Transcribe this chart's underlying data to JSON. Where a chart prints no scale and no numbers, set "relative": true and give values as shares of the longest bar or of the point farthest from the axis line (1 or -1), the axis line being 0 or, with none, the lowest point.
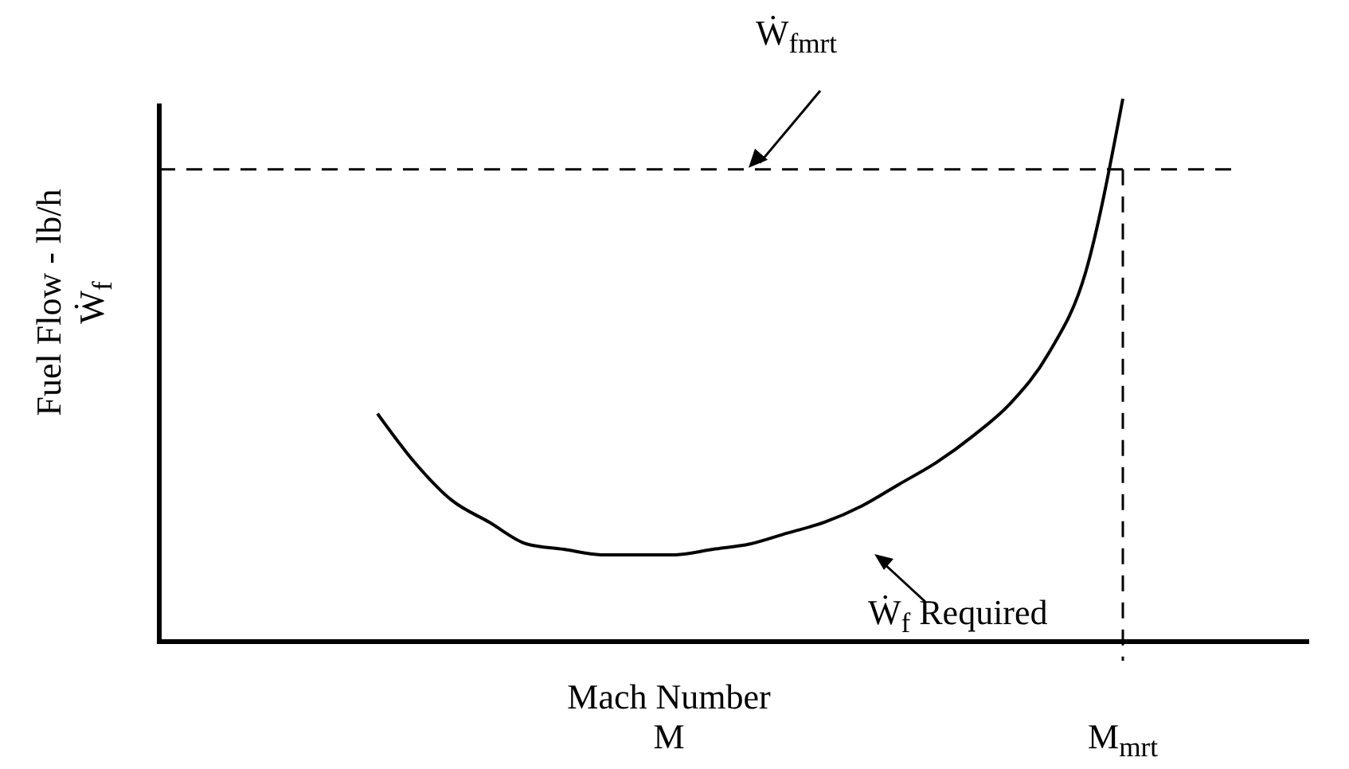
{
  "chart_data": {
    "type": "line",
    "relative": true,
    "xlabel": "Mach Number\nM",
    "ylabel": "Fuel Flow - lb/h\nẆ$_{f}$",
    "categories": [
      null,
      null,
      null,
      null,
      null,
      null,
      null,
      null,
      null,
      null,
      null,
      null,
      null,
      null,
      null,
      null,
      null,
      null,
      null,
      null,
      null,
      null,
      null,
      null,
      null,
      null,
      null,
      null,
      null,
      null
    ],
    "series": [
      {
        "color": "#000000",
        "values": [
          null,
          null,
          null,
          null,
          null,
          0.42,
          0.33,
          0.26,
          0.22,
          0.18,
          0.17,
          0.16,
          0.16,
          0.16,
          0.17,
          0.18,
          0.2,
          0.22,
          0.25,
          0.29,
          0.33,
          0.38,
          0.44,
          0.53,
          0.68,
          1,
          null,
          null,
          null,
          null
        ]
      }
    ],
    "ref_lines": [
      {
        "axis": "y",
        "value": 0.87,
        "label": "Ẇ$_{fmrt}$",
        "line_style": "dashed"
      },
      {
        "axis": "x",
        "label": "M$_{mrt}$",
        "line_style": "dashed"
      }
    ],
    "annotations": [
      "Ẇ$_{f}$ Required"
    ],
    "marker": "none",
    "line_style": "solid"
  }
}
